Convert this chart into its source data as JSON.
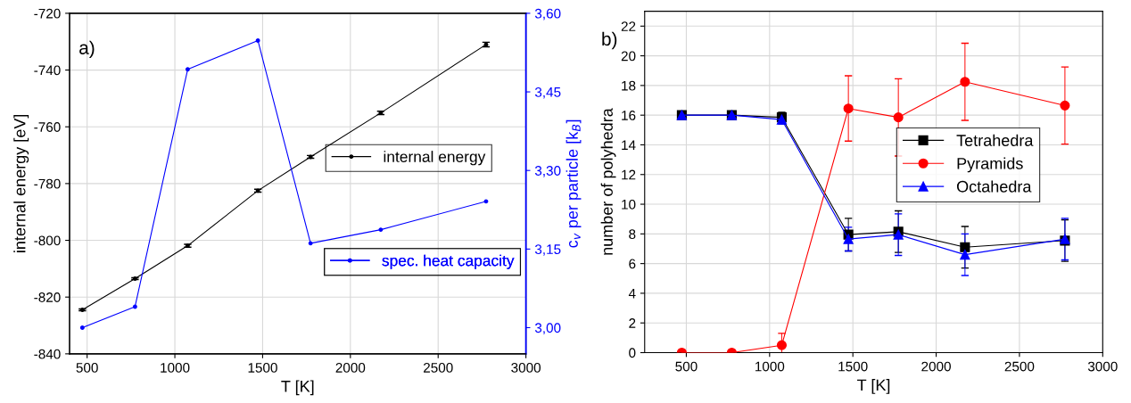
{
  "chart_data": [
    {
      "type": "line",
      "xlabel": "T [K]",
      "ylabel": "internal energy [eV]",
      "y2label": "c$_{v}$ per particle [k$_{B}$]",
      "annotations": [
        "a)"
      ],
      "x": [
        473,
        773,
        1073,
        1473,
        1773,
        2173,
        2773
      ],
      "series": [
        {
          "name": "internal energy",
          "color": "#000000",
          "values": [
            -824.5,
            -813.5,
            -801.9,
            -782.5,
            -770.6,
            -755.1,
            -731.0
          ],
          "errors": [
            0.3,
            0.3,
            0.5,
            0.5,
            0.5,
            0.6,
            0.8
          ]
        },
        {
          "name": "spec. heat capacity",
          "color": "#0000ff",
          "axis": "y2",
          "values": [
            3.0,
            3.04,
            3.493,
            3.548,
            3.161,
            3.187,
            3.241
          ]
        }
      ],
      "xlim": [
        400,
        3000
      ],
      "xticks": [
        500,
        1000,
        1500,
        2000,
        2500,
        3000
      ],
      "ylim": [
        -840,
        -720
      ],
      "yticks": [
        -840,
        -820,
        -800,
        -780,
        -760,
        -740,
        -720
      ],
      "y2lim": [
        2.95,
        3.6
      ],
      "y2ticks": [
        {
          "value": 3.0,
          "label": "3,00"
        },
        {
          "value": 3.15,
          "label": "3,15"
        },
        {
          "value": 3.3,
          "label": "3,30"
        },
        {
          "value": 3.45,
          "label": "3,45"
        },
        {
          "value": 3.6,
          "label": "3,60"
        }
      ],
      "grid": true,
      "legend": "right",
      "marker": "circle",
      "line_style": "solid"
    },
    {
      "type": "line",
      "xlabel": "T [K]",
      "ylabel": "number of polyhedra",
      "annotations": [
        "b)"
      ],
      "x": [
        473,
        773,
        1073,
        1473,
        1773,
        2173,
        2773
      ],
      "series": [
        {
          "name": "Tetrahedra",
          "color": "#000000",
          "marker": "square",
          "values": [
            16,
            16,
            15.85,
            7.95,
            8.15,
            7.1,
            7.55
          ],
          "errors": [
            0.1,
            0.1,
            0.35,
            1.1,
            1.4,
            1.4,
            1.4
          ]
        },
        {
          "name": "Pyramids",
          "color": "#ff0000",
          "marker": "circle",
          "values": [
            0,
            0,
            0.5,
            16.45,
            15.85,
            18.25,
            16.65
          ],
          "errors": [
            0,
            0,
            0.8,
            2.2,
            2.6,
            2.6,
            2.6
          ]
        },
        {
          "name": "Octahedra",
          "color": "#0000ff",
          "marker": "triangle",
          "values": [
            16,
            16,
            15.7,
            7.65,
            7.95,
            6.6,
            7.65
          ],
          "errors": [
            0.1,
            0.1,
            0.3,
            0.8,
            1.4,
            1.4,
            1.4
          ]
        }
      ],
      "xlim": [
        250,
        3000
      ],
      "xticks": [
        500,
        1000,
        1500,
        2000,
        2500,
        3000
      ],
      "ylim": [
        0,
        23
      ],
      "yticks": [
        0,
        2,
        4,
        6,
        8,
        10,
        12,
        14,
        16,
        18,
        20,
        22
      ],
      "grid": true,
      "legend": "center right",
      "line_style": "solid"
    }
  ]
}
